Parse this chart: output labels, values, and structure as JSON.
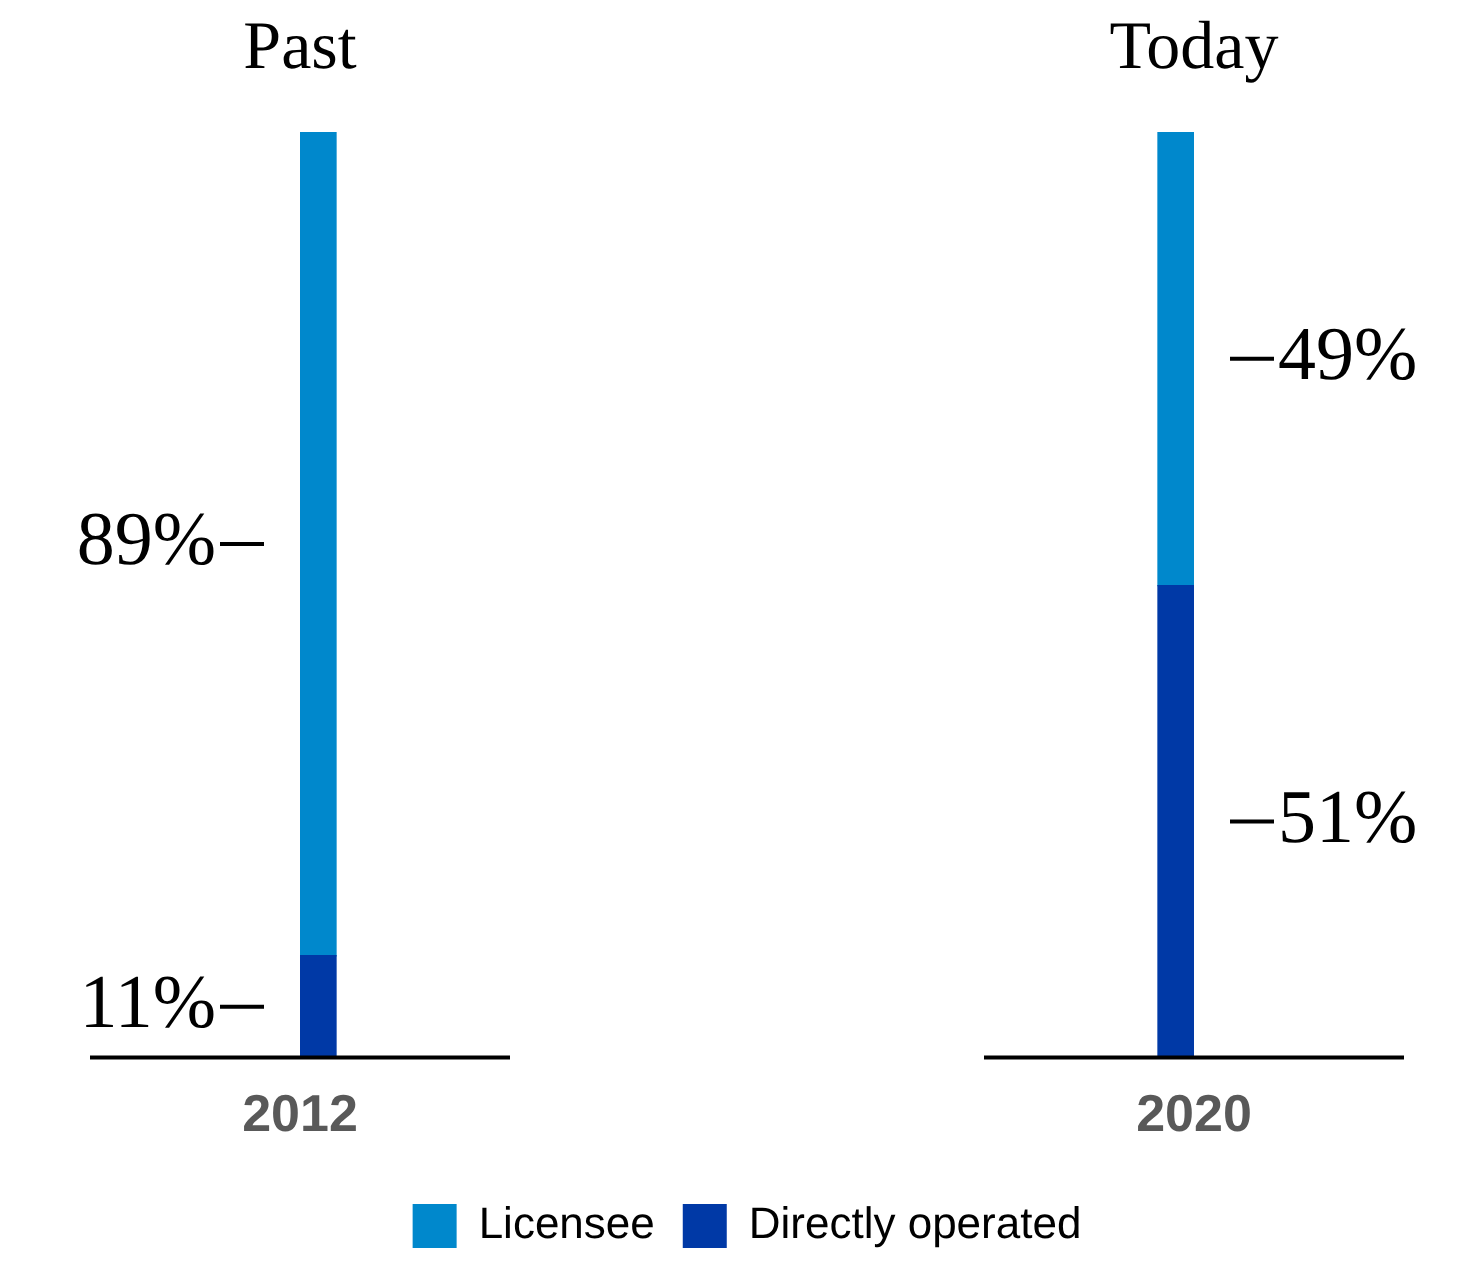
{
  "chart_data": {
    "type": "bar",
    "stacked": true,
    "categories": [
      "2012",
      "2020"
    ],
    "series": [
      {
        "name": "Directly operated",
        "color": "#0039a6",
        "values": [
          11,
          51
        ],
        "value_labels": [
          "11%",
          "51%"
        ]
      },
      {
        "name": "Licensee",
        "color": "#0088cc",
        "values": [
          89,
          49
        ],
        "value_labels": [
          "89%",
          "49%"
        ]
      }
    ],
    "ylim": [
      0,
      100
    ],
    "tick_labels": "x",
    "legend": "bottom",
    "grid": false,
    "annotations": [
      "Past",
      "Today"
    ]
  }
}
